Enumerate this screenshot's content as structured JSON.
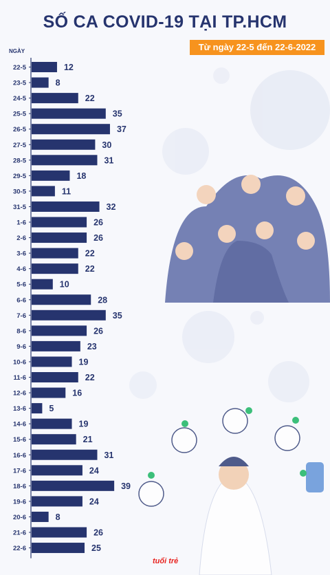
{
  "header": {
    "title": "SỐ CA COVID-19 TẠI TP.HCM",
    "subtitle": "Từ ngày 22-5 đến 22-6-2022",
    "axis_label": "NGÀY"
  },
  "brand": {
    "logo_text": "tuổi trẻ"
  },
  "colors": {
    "bar": "#26346e",
    "accent": "#f7931e",
    "axis": "#26346e"
  },
  "chart_data": {
    "type": "bar",
    "orientation": "horizontal",
    "title": "SỐ CA COVID-19 TẠI TP.HCM",
    "subtitle": "Từ ngày 22-5 đến 22-6-2022",
    "ylabel": "NGÀY",
    "xlim": [
      0,
      40
    ],
    "grid": false,
    "categories": [
      "22-5",
      "23-5",
      "24-5",
      "25-5",
      "26-5",
      "27-5",
      "28-5",
      "29-5",
      "30-5",
      "31-5",
      "1-6",
      "2-6",
      "3-6",
      "4-6",
      "5-6",
      "6-6",
      "7-6",
      "8-6",
      "9-6",
      "10-6",
      "11-6",
      "12-6",
      "13-6",
      "14-6",
      "15-6",
      "16-6",
      "17-6",
      "18-6",
      "19-6",
      "20-6",
      "21-6",
      "22-6"
    ],
    "values": [
      12,
      8,
      22,
      35,
      37,
      30,
      31,
      18,
      11,
      32,
      26,
      26,
      22,
      22,
      10,
      28,
      35,
      26,
      23,
      19,
      22,
      16,
      5,
      19,
      21,
      31,
      24,
      39,
      24,
      8,
      26,
      25
    ]
  }
}
